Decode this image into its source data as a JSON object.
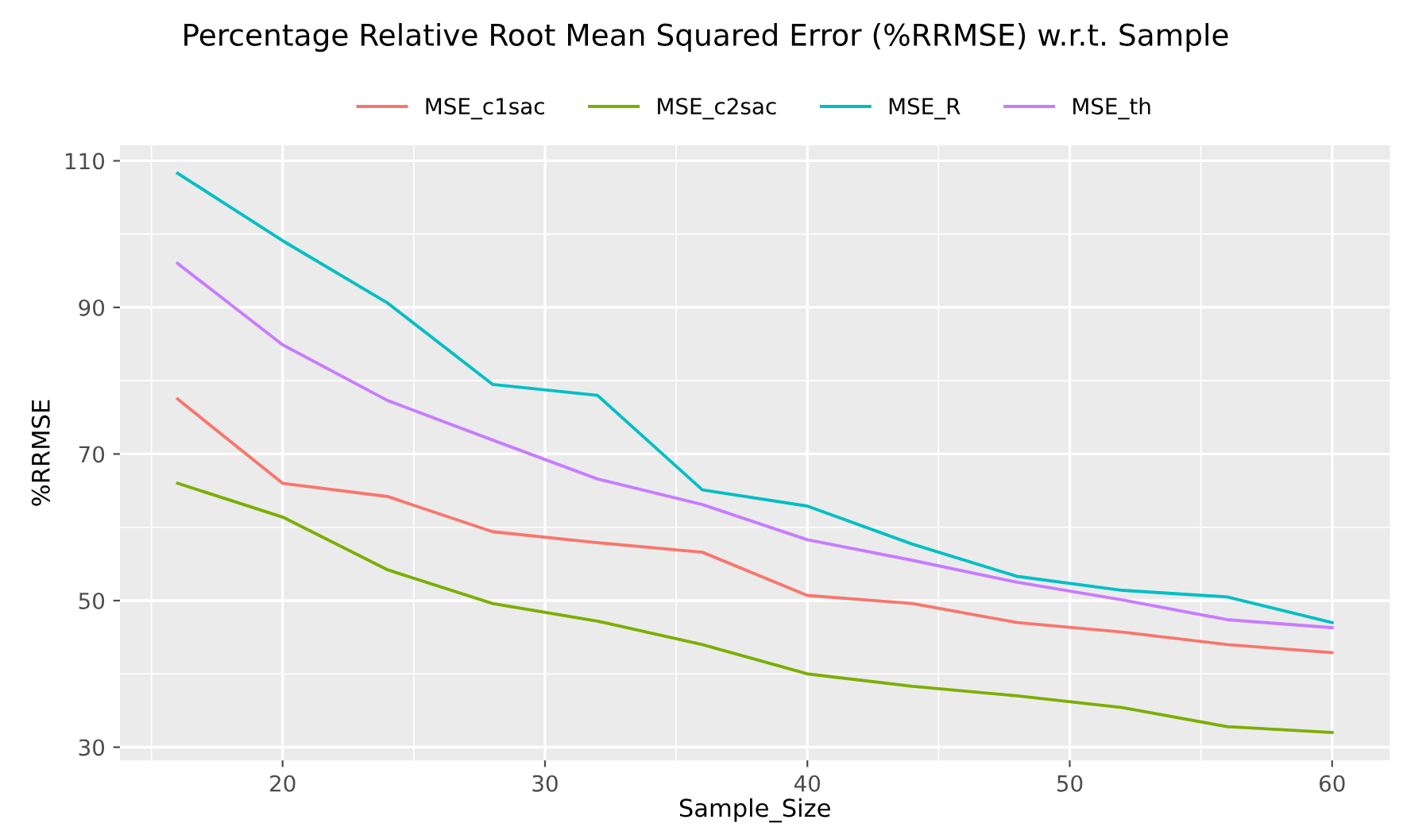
{
  "chart_data": {
    "type": "line",
    "title": "Percentage Relative Root Mean Squared Error (%RRMSE) w.r.t. Sample",
    "xlabel": "Sample_Size",
    "ylabel": "%RRMSE",
    "x": [
      16,
      20,
      24,
      28,
      32,
      36,
      40,
      44,
      48,
      52,
      56,
      60
    ],
    "series": [
      {
        "name": "MSE_c1sac",
        "color": "#f8766d",
        "values": [
          77.5,
          66.0,
          64.2,
          59.4,
          57.9,
          56.6,
          50.7,
          49.6,
          47.0,
          45.7,
          44.0,
          42.9
        ]
      },
      {
        "name": "MSE_c2sac",
        "color": "#7cae00",
        "values": [
          66.0,
          61.4,
          54.2,
          49.6,
          47.2,
          44.0,
          40.0,
          38.3,
          37.0,
          35.4,
          32.8,
          32.0
        ]
      },
      {
        "name": "MSE_R",
        "color": "#00bfc4",
        "values": [
          108.3,
          99.1,
          90.6,
          79.5,
          78.0,
          65.1,
          62.9,
          57.7,
          53.3,
          51.4,
          50.5,
          47.0
        ]
      },
      {
        "name": "MSE_th",
        "color": "#c77cff",
        "values": [
          96.0,
          84.9,
          77.3,
          71.9,
          66.6,
          63.1,
          58.3,
          55.5,
          52.5,
          50.1,
          47.4,
          46.3
        ]
      }
    ],
    "xlim": [
      13.8,
      62.2
    ],
    "ylim": [
      28.2,
      112.1
    ],
    "xticks": [
      20,
      30,
      40,
      50,
      60
    ],
    "yticks": [
      30,
      50,
      70,
      90,
      110
    ],
    "grid": true,
    "legend": "top",
    "line_style": "solid",
    "marker": "none"
  }
}
